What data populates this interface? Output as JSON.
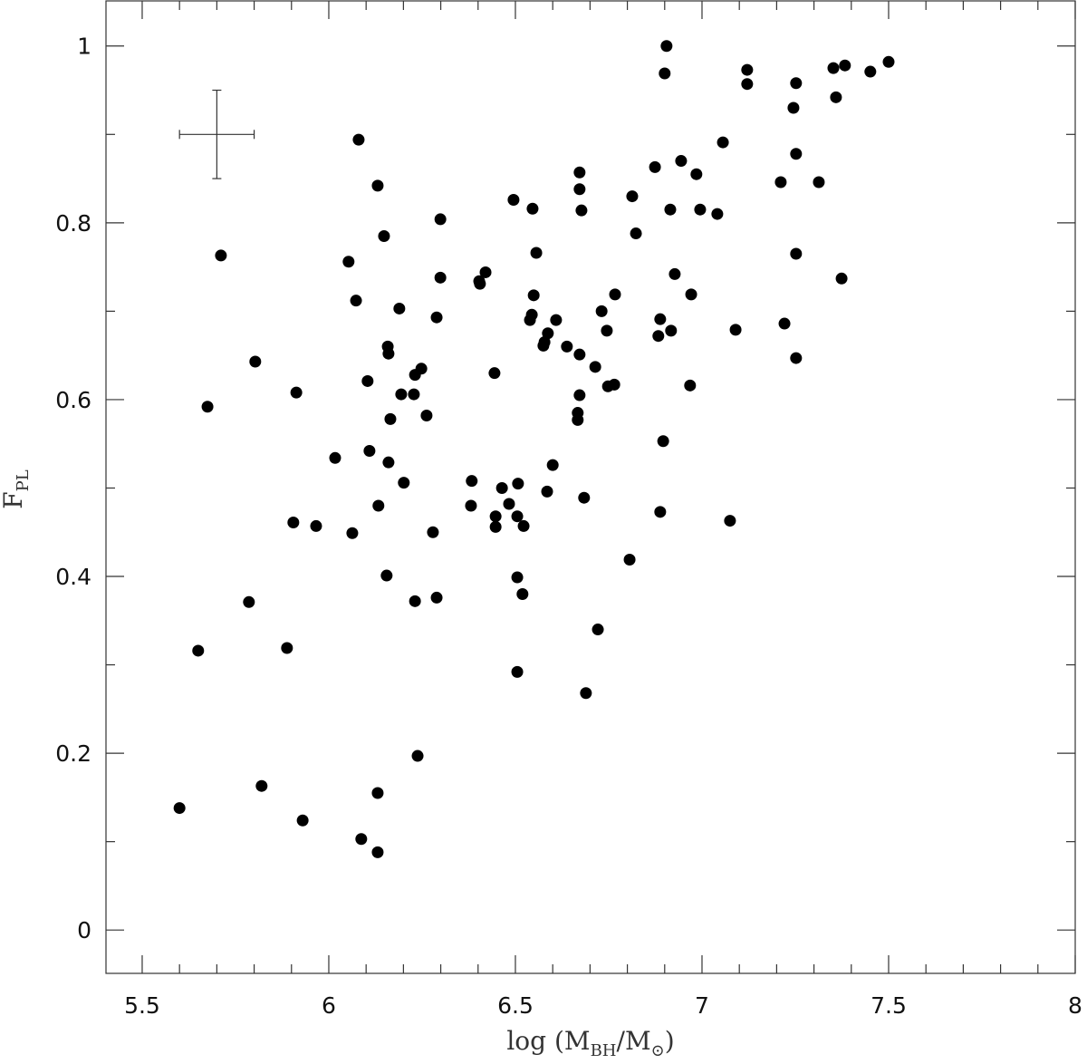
{
  "chart_data": {
    "type": "scatter",
    "xlabel": [
      "log (M",
      "BH",
      "/M",
      "⊙",
      ")"
    ],
    "ylabel": [
      "F",
      "PL"
    ],
    "color": "#000000",
    "xlim": [
      5.403,
      8
    ],
    "ylim": [
      -0.049,
      1.051
    ],
    "xticks": [
      5.5,
      6,
      6.5,
      7,
      7.5,
      8
    ],
    "yticks": [
      0,
      0.2,
      0.4,
      0.6,
      0.8,
      1
    ],
    "error_bar": {
      "x": 5.7,
      "y": 0.9,
      "xerr": 0.1,
      "yerr": 0.05
    },
    "x": [
      5.6,
      5.65,
      5.675,
      5.711,
      5.786,
      5.803,
      5.82,
      5.888,
      5.905,
      5.913,
      5.93,
      5.966,
      6.017,
      6.053,
      6.063,
      6.073,
      6.08,
      6.087,
      6.104,
      6.109,
      6.131,
      6.131,
      6.131,
      6.133,
      6.148,
      6.155,
      6.158,
      6.16,
      6.16,
      6.165,
      6.189,
      6.194,
      6.201,
      6.228,
      6.231,
      6.231,
      6.238,
      6.248,
      6.262,
      6.279,
      6.289,
      6.289,
      6.299,
      6.299,
      6.381,
      6.383,
      6.403,
      6.405,
      6.42,
      6.444,
      6.447,
      6.447,
      6.464,
      6.483,
      6.495,
      6.505,
      6.507,
      6.505,
      6.505,
      6.519,
      6.522,
      6.539,
      6.544,
      6.546,
      6.549,
      6.556,
      6.575,
      6.578,
      6.585,
      6.587,
      6.6,
      6.609,
      6.638,
      6.667,
      6.667,
      6.672,
      6.672,
      6.672,
      6.672,
      6.677,
      6.684,
      6.689,
      6.714,
      6.721,
      6.731,
      6.745,
      6.748,
      6.765,
      6.767,
      6.806,
      6.813,
      6.823,
      6.874,
      6.883,
      6.888,
      6.888,
      6.896,
      6.9,
      6.905,
      6.915,
      6.917,
      6.927,
      6.944,
      6.968,
      6.971,
      6.985,
      6.995,
      7.041,
      7.056,
      7.075,
      7.09,
      7.121,
      7.121,
      7.211,
      7.221,
      7.245,
      7.252,
      7.252,
      7.252,
      7.252,
      7.313,
      7.352,
      7.359,
      7.374,
      7.383,
      7.451,
      7.5
    ],
    "values": [
      0.138,
      0.316,
      0.592,
      0.763,
      0.371,
      0.643,
      0.163,
      0.319,
      0.461,
      0.608,
      0.124,
      0.457,
      0.534,
      0.756,
      0.449,
      0.712,
      0.894,
      0.103,
      0.621,
      0.542,
      0.842,
      0.155,
      0.088,
      0.48,
      0.785,
      0.401,
      0.66,
      0.652,
      0.529,
      0.578,
      0.703,
      0.606,
      0.506,
      0.606,
      0.628,
      0.372,
      0.197,
      0.635,
      0.582,
      0.45,
      0.693,
      0.376,
      0.804,
      0.738,
      0.48,
      0.508,
      0.734,
      0.731,
      0.744,
      0.63,
      0.468,
      0.456,
      0.5,
      0.482,
      0.826,
      0.468,
      0.505,
      0.399,
      0.292,
      0.38,
      0.457,
      0.69,
      0.696,
      0.816,
      0.718,
      0.766,
      0.661,
      0.665,
      0.496,
      0.675,
      0.526,
      0.69,
      0.66,
      0.585,
      0.577,
      0.651,
      0.605,
      0.857,
      0.838,
      0.814,
      0.489,
      0.268,
      0.637,
      0.34,
      0.7,
      0.678,
      0.615,
      0.617,
      0.719,
      0.419,
      0.83,
      0.788,
      0.863,
      0.672,
      0.691,
      0.473,
      0.553,
      0.969,
      1.0,
      0.815,
      0.678,
      0.742,
      0.87,
      0.616,
      0.719,
      0.855,
      0.815,
      0.81,
      0.891,
      0.463,
      0.679,
      0.973,
      0.957,
      0.846,
      0.686,
      0.93,
      0.958,
      0.878,
      0.765,
      0.647,
      0.846,
      0.975,
      0.942,
      0.737,
      0.978,
      0.971,
      0.982
    ]
  }
}
